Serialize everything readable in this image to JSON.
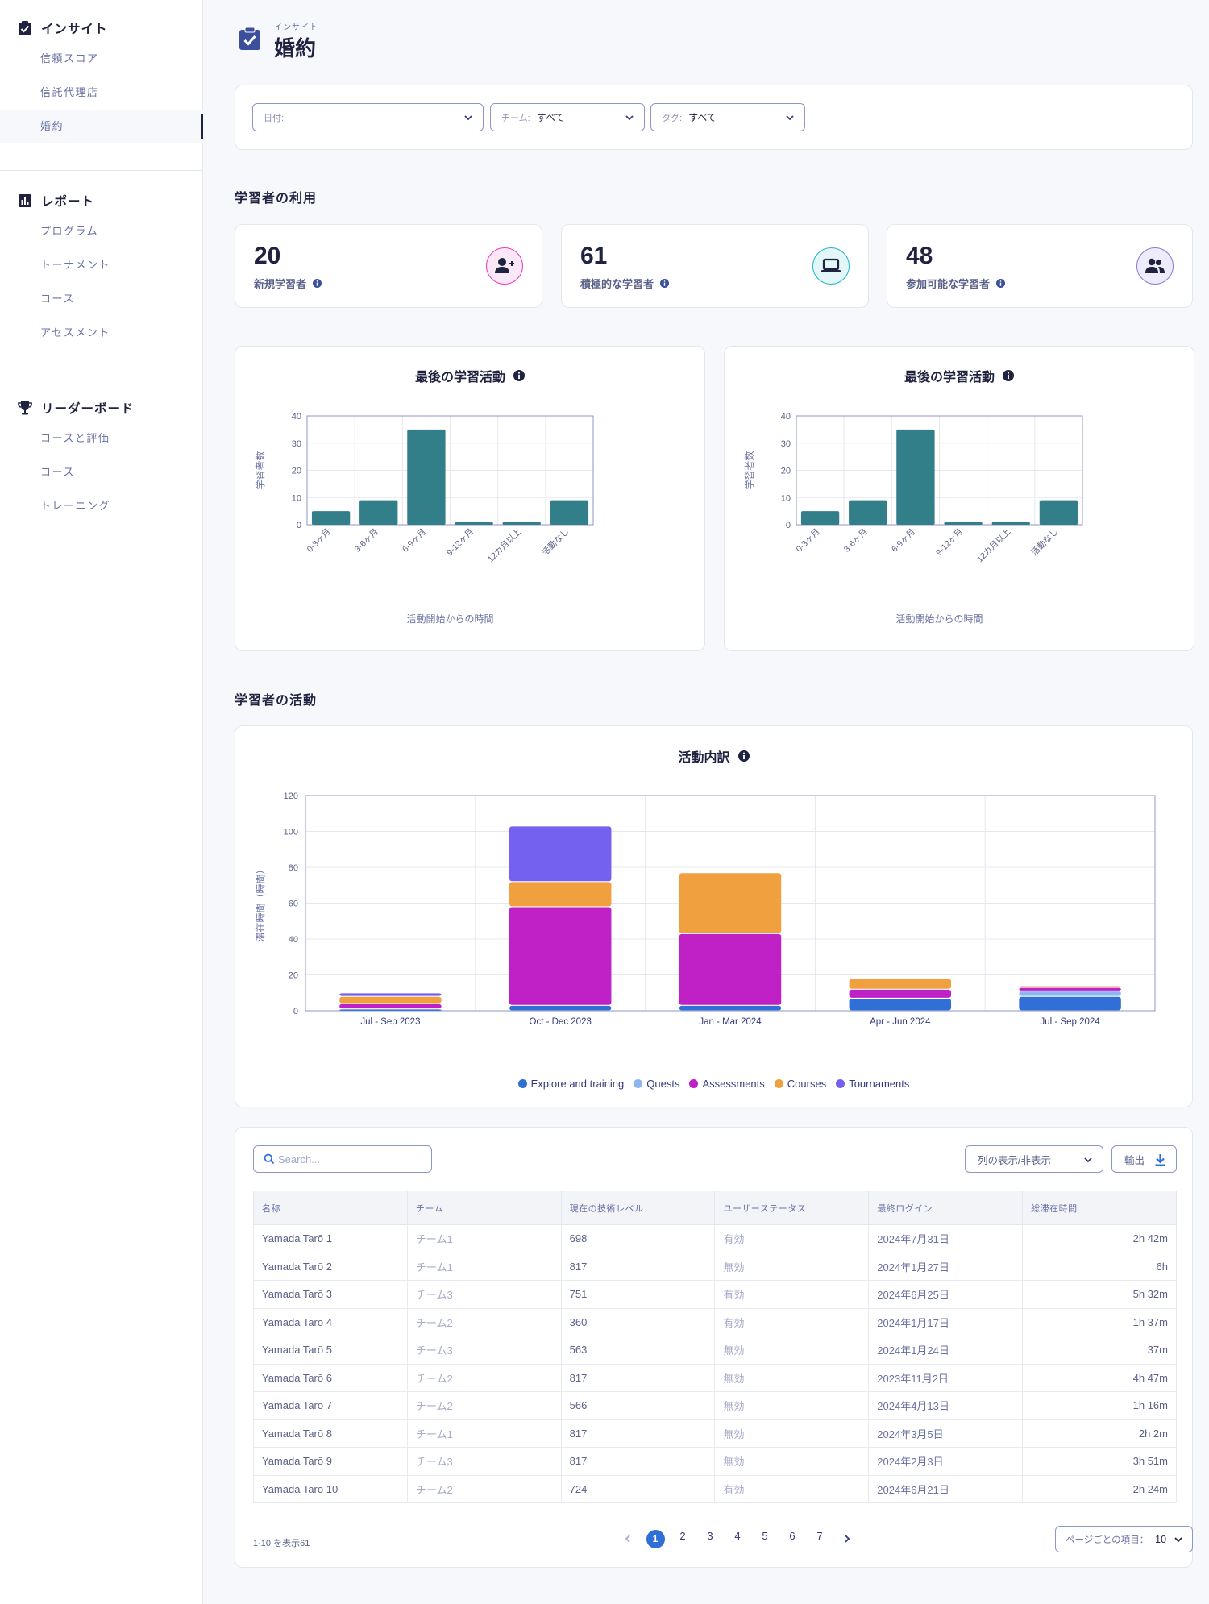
{
  "sidebar": {
    "groups": [
      {
        "title": "インサイト",
        "items": [
          "信頼スコア",
          "信託代理店",
          "婚約"
        ],
        "active_index": 2
      },
      {
        "title": "レポート",
        "items": [
          "プログラム",
          "トーナメント",
          "コース",
          "アセスメント"
        ]
      },
      {
        "title": "リーダーボード",
        "items": [
          "コースと評価",
          "コース",
          "トレーニング"
        ]
      }
    ]
  },
  "header": {
    "kicker": "インサイト",
    "title": "婚約"
  },
  "filters": [
    {
      "label": "日付:",
      "value": ""
    },
    {
      "label": "チーム:",
      "value": "すべて"
    },
    {
      "label": "タグ:",
      "value": "すべて"
    }
  ],
  "sections": {
    "usage": "学習者の利用",
    "activity": "学習者の活動"
  },
  "stats": [
    {
      "value": "20",
      "label": "新規学習者",
      "icon": "user-plus-icon",
      "color": "#e83fc4",
      "bg": "#fbe8f7"
    },
    {
      "value": "61",
      "label": "積極的な学習者",
      "icon": "laptop-icon",
      "color": "#29b6c9",
      "bg": "#e3f7f9"
    },
    {
      "value": "48",
      "label": "参加可能な学習者",
      "icon": "users-icon",
      "color": "#8a7fd6",
      "bg": "#eeecfa"
    }
  ],
  "chart_data": [
    {
      "type": "bar",
      "title": "最後の学習活動",
      "xlabel": "活動開始からの時間",
      "ylabel": "学習者数",
      "categories": [
        "0-3ヶ月",
        "3-6ヶ月",
        "6-9ヶ月",
        "9-12ヶ月",
        "12カ月以上",
        "活動なし"
      ],
      "values": [
        5,
        9,
        35,
        1,
        1,
        9
      ],
      "ylim": [
        0,
        40
      ],
      "yticks": [
        0,
        10,
        20,
        30,
        40
      ],
      "color": "#327f8a"
    },
    {
      "type": "bar",
      "title": "最後の学習活動",
      "xlabel": "活動開始からの時間",
      "ylabel": "学習者数",
      "categories": [
        "0-3ヶ月",
        "3-6ヶ月",
        "6-9ヶ月",
        "9-12ヶ月",
        "12カ月以上",
        "活動なし"
      ],
      "values": [
        5,
        9,
        35,
        1,
        1,
        9
      ],
      "ylim": [
        0,
        40
      ],
      "yticks": [
        0,
        10,
        20,
        30,
        40
      ],
      "color": "#327f8a"
    },
    {
      "type": "bar",
      "stacked": true,
      "title": "活動内訳",
      "ylabel": "滞在時間（時間）",
      "xlabel": "",
      "categories": [
        "Jul - Sep 2023",
        "Oct - Dec 2023",
        "Jan - Mar 2024",
        "Apr - Jun 2024",
        "Jul - Sep 2024"
      ],
      "ylim": [
        0,
        120
      ],
      "yticks": [
        0,
        20,
        40,
        60,
        80,
        100,
        120
      ],
      "legend_position": "bottom",
      "series": [
        {
          "name": "Explore and training",
          "color": "#2f6fd6",
          "values": [
            1,
            3,
            3,
            7,
            8
          ]
        },
        {
          "name": "Quests",
          "color": "#8fb6f0",
          "values": [
            0,
            0,
            0,
            0,
            3
          ]
        },
        {
          "name": "Assessments",
          "color": "#bf21c7",
          "values": [
            3,
            55,
            40,
            5,
            2
          ]
        },
        {
          "name": "Courses",
          "color": "#f0a03e",
          "values": [
            4,
            14,
            34,
            6,
            1
          ]
        },
        {
          "name": "Tournaments",
          "color": "#7461ef",
          "values": [
            2,
            31,
            0,
            0,
            0
          ]
        }
      ]
    }
  ],
  "table": {
    "search_placeholder": "Search...",
    "columns_button": "列の表示/非表示",
    "export_button": "輸出",
    "headers": [
      "名称",
      "チーム",
      "現在の技術レベル",
      "ユーザーステータス",
      "最終ログイン",
      "総滞在時間"
    ],
    "rows": [
      [
        "Yamada Tarō 1",
        "チーム1",
        "698",
        "有効",
        "2024年7月31日",
        "2h 42m"
      ],
      [
        "Yamada Tarō 2",
        "チーム1",
        "817",
        "無効",
        "2024年1月27日",
        "6h"
      ],
      [
        "Yamada Tarō 3",
        "チーム3",
        "751",
        "有効",
        "2024年6月25日",
        "5h 32m"
      ],
      [
        "Yamada Tarō 4",
        "チーム2",
        "360",
        "有効",
        "2024年1月17日",
        "1h 37m"
      ],
      [
        "Yamada Tarō 5",
        "チーム3",
        "563",
        "無効",
        "2024年1月24日",
        "37m"
      ],
      [
        "Yamada Tarō 6",
        "チーム2",
        "817",
        "無効",
        "2023年11月2日",
        "4h 47m"
      ],
      [
        "Yamada Tarō 7",
        "チーム2",
        "566",
        "無効",
        "2024年4月13日",
        "1h 16m"
      ],
      [
        "Yamada Tarō 8",
        "チーム1",
        "817",
        "無効",
        "2024年3月5日",
        "2h 2m"
      ],
      [
        "Yamada Tarō 9",
        "チーム3",
        "817",
        "無効",
        "2024年2月3日",
        "3h 51m"
      ],
      [
        "Yamada Tarō 10",
        "チーム2",
        "724",
        "有効",
        "2024年6月21日",
        "2h 24m"
      ]
    ],
    "page_info": "1-10 を表示61",
    "pages": [
      "1",
      "2",
      "3",
      "4",
      "5",
      "6",
      "7"
    ],
    "current_page": "1",
    "per_page_label": "ページごとの項目：",
    "per_page_value": "10"
  }
}
